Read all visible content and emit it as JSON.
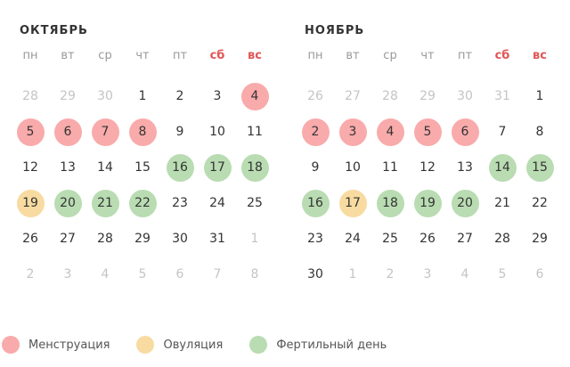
{
  "colors": {
    "menstruation": "#f9aaaa",
    "ovulation": "#f7dba0",
    "fertile": "#b9dcb2",
    "weekend": "#e25555"
  },
  "weekdays": [
    "пн",
    "вт",
    "ср",
    "чт",
    "пт",
    "сб",
    "вс"
  ],
  "months": [
    {
      "title": "ОКТЯБРЬ",
      "days": [
        {
          "d": "28",
          "s": "muted"
        },
        {
          "d": "29",
          "s": "muted"
        },
        {
          "d": "30",
          "s": "muted"
        },
        {
          "d": "1"
        },
        {
          "d": "2"
        },
        {
          "d": "3"
        },
        {
          "d": "4",
          "s": "menstruation"
        },
        {
          "d": "5",
          "s": "menstruation"
        },
        {
          "d": "6",
          "s": "menstruation"
        },
        {
          "d": "7",
          "s": "menstruation"
        },
        {
          "d": "8",
          "s": "menstruation"
        },
        {
          "d": "9"
        },
        {
          "d": "10"
        },
        {
          "d": "11"
        },
        {
          "d": "12"
        },
        {
          "d": "13"
        },
        {
          "d": "14"
        },
        {
          "d": "15"
        },
        {
          "d": "16",
          "s": "fertile"
        },
        {
          "d": "17",
          "s": "fertile"
        },
        {
          "d": "18",
          "s": "fertile"
        },
        {
          "d": "19",
          "s": "ovulation"
        },
        {
          "d": "20",
          "s": "fertile"
        },
        {
          "d": "21",
          "s": "fertile"
        },
        {
          "d": "22",
          "s": "fertile"
        },
        {
          "d": "23"
        },
        {
          "d": "24"
        },
        {
          "d": "25"
        },
        {
          "d": "26"
        },
        {
          "d": "27"
        },
        {
          "d": "28"
        },
        {
          "d": "29"
        },
        {
          "d": "30"
        },
        {
          "d": "31"
        },
        {
          "d": "1",
          "s": "muted"
        },
        {
          "d": "2",
          "s": "muted"
        },
        {
          "d": "3",
          "s": "muted"
        },
        {
          "d": "4",
          "s": "muted"
        },
        {
          "d": "5",
          "s": "muted"
        },
        {
          "d": "6",
          "s": "muted"
        },
        {
          "d": "7",
          "s": "muted"
        },
        {
          "d": "8",
          "s": "muted"
        }
      ]
    },
    {
      "title": "НОЯБРЬ",
      "days": [
        {
          "d": "26",
          "s": "muted"
        },
        {
          "d": "27",
          "s": "muted"
        },
        {
          "d": "28",
          "s": "muted"
        },
        {
          "d": "29",
          "s": "muted"
        },
        {
          "d": "30",
          "s": "muted"
        },
        {
          "d": "31",
          "s": "muted"
        },
        {
          "d": "1"
        },
        {
          "d": "2",
          "s": "menstruation"
        },
        {
          "d": "3",
          "s": "menstruation"
        },
        {
          "d": "4",
          "s": "menstruation"
        },
        {
          "d": "5",
          "s": "menstruation"
        },
        {
          "d": "6",
          "s": "menstruation"
        },
        {
          "d": "7"
        },
        {
          "d": "8"
        },
        {
          "d": "9"
        },
        {
          "d": "10"
        },
        {
          "d": "11"
        },
        {
          "d": "12"
        },
        {
          "d": "13"
        },
        {
          "d": "14",
          "s": "fertile"
        },
        {
          "d": "15",
          "s": "fertile"
        },
        {
          "d": "16",
          "s": "fertile"
        },
        {
          "d": "17",
          "s": "ovulation"
        },
        {
          "d": "18",
          "s": "fertile"
        },
        {
          "d": "19",
          "s": "fertile"
        },
        {
          "d": "20",
          "s": "fertile"
        },
        {
          "d": "21"
        },
        {
          "d": "22"
        },
        {
          "d": "23"
        },
        {
          "d": "24"
        },
        {
          "d": "25"
        },
        {
          "d": "26"
        },
        {
          "d": "27"
        },
        {
          "d": "28"
        },
        {
          "d": "29"
        },
        {
          "d": "30"
        },
        {
          "d": "1",
          "s": "muted"
        },
        {
          "d": "2",
          "s": "muted"
        },
        {
          "d": "3",
          "s": "muted"
        },
        {
          "d": "4",
          "s": "muted"
        },
        {
          "d": "5",
          "s": "muted"
        },
        {
          "d": "6",
          "s": "muted"
        }
      ]
    }
  ],
  "legend": [
    {
      "key": "menstruation",
      "label": "Менструация"
    },
    {
      "key": "ovulation",
      "label": "Овуляция"
    },
    {
      "key": "fertile",
      "label": "Фертильный день"
    }
  ]
}
